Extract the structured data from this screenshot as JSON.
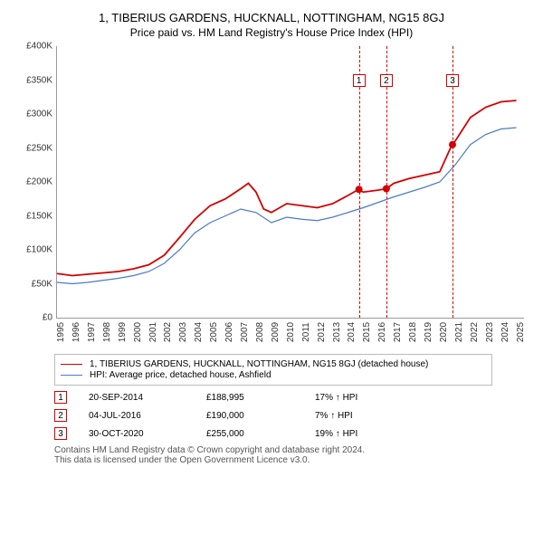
{
  "title": "1, TIBERIUS GARDENS, HUCKNALL, NOTTINGHAM, NG15 8GJ",
  "subtitle": "Price paid vs. HM Land Registry's House Price Index (HPI)",
  "chart": {
    "type": "line",
    "background_color": "#ffffff",
    "axis_color": "#999999",
    "y": {
      "min": 0,
      "max": 400000,
      "ticks": [
        0,
        50000,
        100000,
        150000,
        200000,
        250000,
        300000,
        350000,
        400000
      ],
      "labels": [
        "£0",
        "£50K",
        "£100K",
        "£150K",
        "£200K",
        "£250K",
        "£300K",
        "£350K",
        "£400K"
      ]
    },
    "x": {
      "min": 1995,
      "max": 2025.5,
      "ticks": [
        1995,
        1996,
        1997,
        1998,
        1999,
        2000,
        2001,
        2002,
        2003,
        2004,
        2005,
        2006,
        2007,
        2008,
        2009,
        2010,
        2011,
        2012,
        2013,
        2014,
        2015,
        2016,
        2017,
        2018,
        2019,
        2020,
        2021,
        2022,
        2023,
        2024,
        2025
      ]
    },
    "series": [
      {
        "name": "property",
        "label": "1, TIBERIUS GARDENS, HUCKNALL, NOTTINGHAM, NG15 8GJ (detached house)",
        "color": "#d40000",
        "width": 1.8,
        "points": [
          [
            1995,
            65000
          ],
          [
            1996,
            62000
          ],
          [
            1997,
            64000
          ],
          [
            1998,
            66000
          ],
          [
            1999,
            68000
          ],
          [
            2000,
            72000
          ],
          [
            2001,
            78000
          ],
          [
            2002,
            92000
          ],
          [
            2003,
            118000
          ],
          [
            2004,
            145000
          ],
          [
            2005,
            165000
          ],
          [
            2006,
            175000
          ],
          [
            2007,
            190000
          ],
          [
            2007.5,
            198000
          ],
          [
            2008,
            185000
          ],
          [
            2008.5,
            160000
          ],
          [
            2009,
            155000
          ],
          [
            2010,
            168000
          ],
          [
            2011,
            165000
          ],
          [
            2012,
            162000
          ],
          [
            2013,
            168000
          ],
          [
            2014,
            180000
          ],
          [
            2014.7,
            188995
          ],
          [
            2015,
            185000
          ],
          [
            2016,
            188000
          ],
          [
            2016.5,
            190000
          ],
          [
            2017,
            198000
          ],
          [
            2018,
            205000
          ],
          [
            2019,
            210000
          ],
          [
            2020,
            215000
          ],
          [
            2020.8,
            255000
          ],
          [
            2021,
            260000
          ],
          [
            2022,
            295000
          ],
          [
            2023,
            310000
          ],
          [
            2024,
            318000
          ],
          [
            2025,
            320000
          ]
        ]
      },
      {
        "name": "hpi",
        "label": "HPI: Average price, detached house, Ashfield",
        "color": "#4a7bc8",
        "width": 1.2,
        "points": [
          [
            1995,
            52000
          ],
          [
            1996,
            50000
          ],
          [
            1997,
            52000
          ],
          [
            1998,
            55000
          ],
          [
            1999,
            58000
          ],
          [
            2000,
            62000
          ],
          [
            2001,
            68000
          ],
          [
            2002,
            80000
          ],
          [
            2003,
            100000
          ],
          [
            2004,
            125000
          ],
          [
            2005,
            140000
          ],
          [
            2006,
            150000
          ],
          [
            2007,
            160000
          ],
          [
            2008,
            155000
          ],
          [
            2009,
            140000
          ],
          [
            2010,
            148000
          ],
          [
            2011,
            145000
          ],
          [
            2012,
            143000
          ],
          [
            2013,
            148000
          ],
          [
            2014,
            155000
          ],
          [
            2015,
            162000
          ],
          [
            2016,
            170000
          ],
          [
            2017,
            178000
          ],
          [
            2018,
            185000
          ],
          [
            2019,
            192000
          ],
          [
            2020,
            200000
          ],
          [
            2021,
            225000
          ],
          [
            2022,
            255000
          ],
          [
            2023,
            270000
          ],
          [
            2024,
            278000
          ],
          [
            2025,
            280000
          ]
        ]
      }
    ],
    "events": [
      {
        "n": "1",
        "year": 2014.72,
        "price": 188995,
        "date": "20-SEP-2014",
        "price_str": "£188,995",
        "pct": "17% ↑ HPI",
        "color": "#d40000"
      },
      {
        "n": "2",
        "year": 2016.51,
        "price": 190000,
        "date": "04-JUL-2016",
        "price_str": "£190,000",
        "pct": "7% ↑ HPI",
        "color": "#d40000"
      },
      {
        "n": "3",
        "year": 2020.83,
        "price": 255000,
        "date": "30-OCT-2020",
        "price_str": "£255,000",
        "pct": "19% ↑ HPI",
        "color": "#d40000"
      }
    ]
  },
  "footer": {
    "line1": "Contains HM Land Registry data © Crown copyright and database right 2024.",
    "line2": "This data is licensed under the Open Government Licence v3.0."
  }
}
